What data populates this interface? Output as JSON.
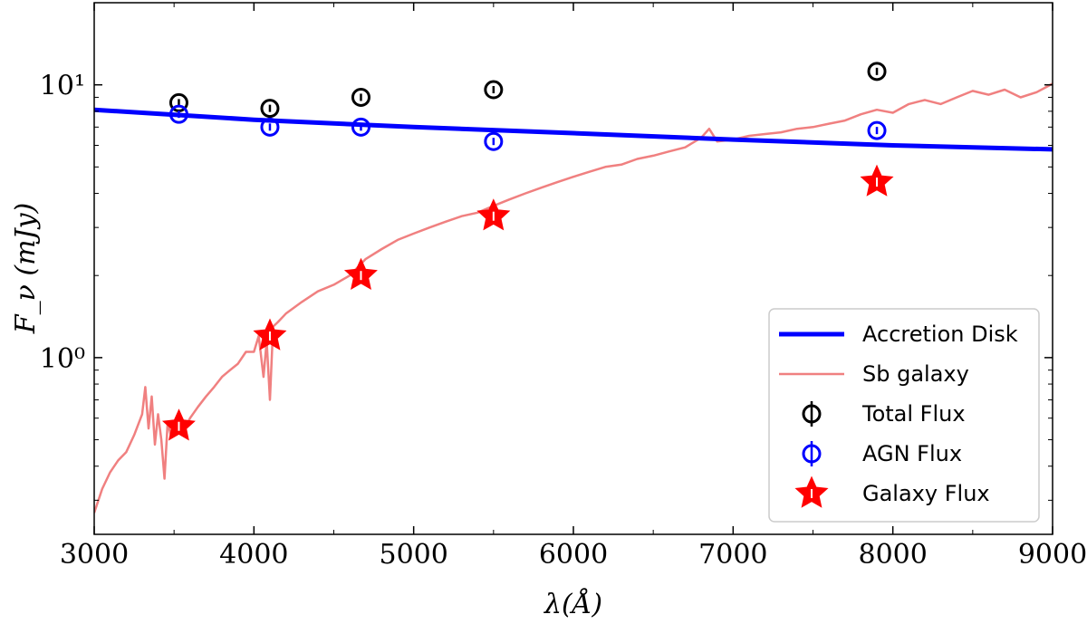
{
  "chart_data": {
    "type": "line",
    "title": "",
    "xlabel": "λ(Å)",
    "ylabel": "F_ν (mJy)",
    "xlim": [
      3000,
      9000
    ],
    "ylim": [
      0.225,
      20
    ],
    "yscale": "log",
    "grid": false,
    "legend_position": "lower-right",
    "x_ticks": [
      3000,
      4000,
      5000,
      6000,
      7000,
      8000,
      9000
    ],
    "y_ticks": [
      {
        "value": 1,
        "label": "10⁰"
      },
      {
        "value": 10,
        "label": "10¹"
      }
    ],
    "series": [
      {
        "name": "Accretion Disk",
        "kind": "line",
        "color": "#0000ff",
        "x": [
          3000,
          4000,
          5000,
          6000,
          7000,
          8000,
          9000
        ],
        "y": [
          8.1,
          7.45,
          7.0,
          6.65,
          6.3,
          6.0,
          5.8
        ]
      },
      {
        "name": "Sb galaxy",
        "kind": "line",
        "color": "#f08080",
        "x": [
          3000,
          3050,
          3100,
          3150,
          3200,
          3250,
          3300,
          3320,
          3340,
          3360,
          3380,
          3400,
          3420,
          3440,
          3460,
          3480,
          3500,
          3550,
          3600,
          3650,
          3700,
          3750,
          3800,
          3850,
          3900,
          3950,
          4000,
          4030,
          4060,
          4080,
          4100,
          4120,
          4150,
          4200,
          4300,
          4400,
          4500,
          4600,
          4700,
          4800,
          4900,
          5000,
          5100,
          5200,
          5300,
          5400,
          5500,
          5600,
          5700,
          5800,
          5900,
          6000,
          6100,
          6200,
          6300,
          6400,
          6500,
          6600,
          6700,
          6800,
          6850,
          6900,
          7000,
          7100,
          7200,
          7300,
          7400,
          7500,
          7600,
          7700,
          7800,
          7900,
          8000,
          8100,
          8200,
          8300,
          8400,
          8500,
          8600,
          8700,
          8800,
          8900,
          9000
        ],
        "y": [
          0.27,
          0.33,
          0.38,
          0.42,
          0.45,
          0.52,
          0.62,
          0.78,
          0.55,
          0.72,
          0.48,
          0.62,
          0.5,
          0.36,
          0.58,
          0.52,
          0.55,
          0.52,
          0.6,
          0.66,
          0.72,
          0.78,
          0.85,
          0.9,
          0.95,
          1.05,
          1.05,
          1.2,
          0.85,
          1.15,
          0.7,
          1.3,
          1.35,
          1.45,
          1.6,
          1.75,
          1.85,
          2.0,
          2.3,
          2.5,
          2.7,
          2.85,
          3.0,
          3.15,
          3.3,
          3.4,
          3.6,
          3.8,
          4.0,
          4.2,
          4.4,
          4.6,
          4.8,
          5.0,
          5.1,
          5.35,
          5.5,
          5.7,
          5.9,
          6.4,
          6.9,
          6.2,
          6.3,
          6.5,
          6.6,
          6.7,
          6.9,
          7.0,
          7.2,
          7.4,
          7.8,
          8.1,
          7.9,
          8.5,
          8.8,
          8.5,
          9.0,
          9.5,
          9.2,
          9.6,
          9.0,
          9.4,
          10.1
        ]
      }
    ],
    "points": [
      {
        "name": "Total Flux",
        "marker": "circle",
        "color": "#000000",
        "x": [
          3530,
          4100,
          4670,
          5500,
          7900
        ],
        "y": [
          8.6,
          8.2,
          9.0,
          9.6,
          11.2
        ]
      },
      {
        "name": "AGN Flux",
        "marker": "circle",
        "color": "#0000ff",
        "x": [
          3530,
          4100,
          4670,
          5500,
          7900
        ],
        "y": [
          7.8,
          7.0,
          7.0,
          6.2,
          6.8
        ]
      },
      {
        "name": "Galaxy Flux",
        "marker": "star",
        "color": "#ff0000",
        "x": [
          3530,
          4100,
          4670,
          5500,
          7900
        ],
        "y": [
          0.56,
          1.2,
          2.0,
          3.3,
          4.4
        ]
      }
    ]
  }
}
